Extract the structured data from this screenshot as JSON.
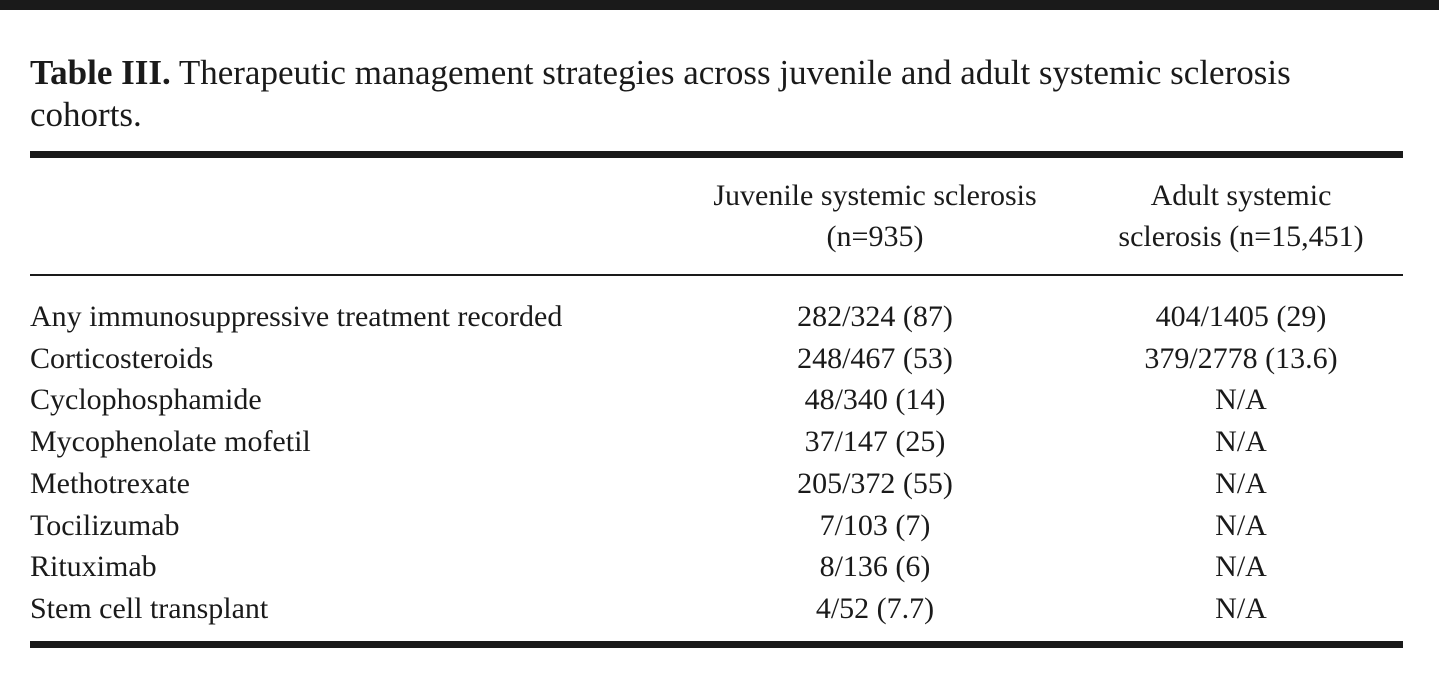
{
  "caption": {
    "label": "Table III.",
    "text": "Therapeutic management strategies across juvenile and adult systemic sclerosis cohorts."
  },
  "table": {
    "columns": [
      [
        "Juvenile systemic sclerosis",
        "(n=935)"
      ],
      [
        "Adult systemic",
        "sclerosis (n=15,451)"
      ]
    ],
    "rows": [
      [
        "Any immunosuppressive treatment recorded",
        "282/324 (87)",
        "404/1405 (29)"
      ],
      [
        "Corticosteroids",
        "248/467 (53)",
        "379/2778 (13.6)"
      ],
      [
        "Cyclophosphamide",
        "48/340 (14)",
        "N/A"
      ],
      [
        "Mycophenolate mofetil",
        "37/147 (25)",
        "N/A"
      ],
      [
        "Methotrexate",
        "205/372 (55)",
        "N/A"
      ],
      [
        "Tocilizumab",
        "7/103 (7)",
        "N/A"
      ],
      [
        "Rituximab",
        "8/136 (6)",
        "N/A"
      ],
      [
        "Stem cell transplant",
        "4/52 (7.7)",
        "N/A"
      ]
    ]
  }
}
